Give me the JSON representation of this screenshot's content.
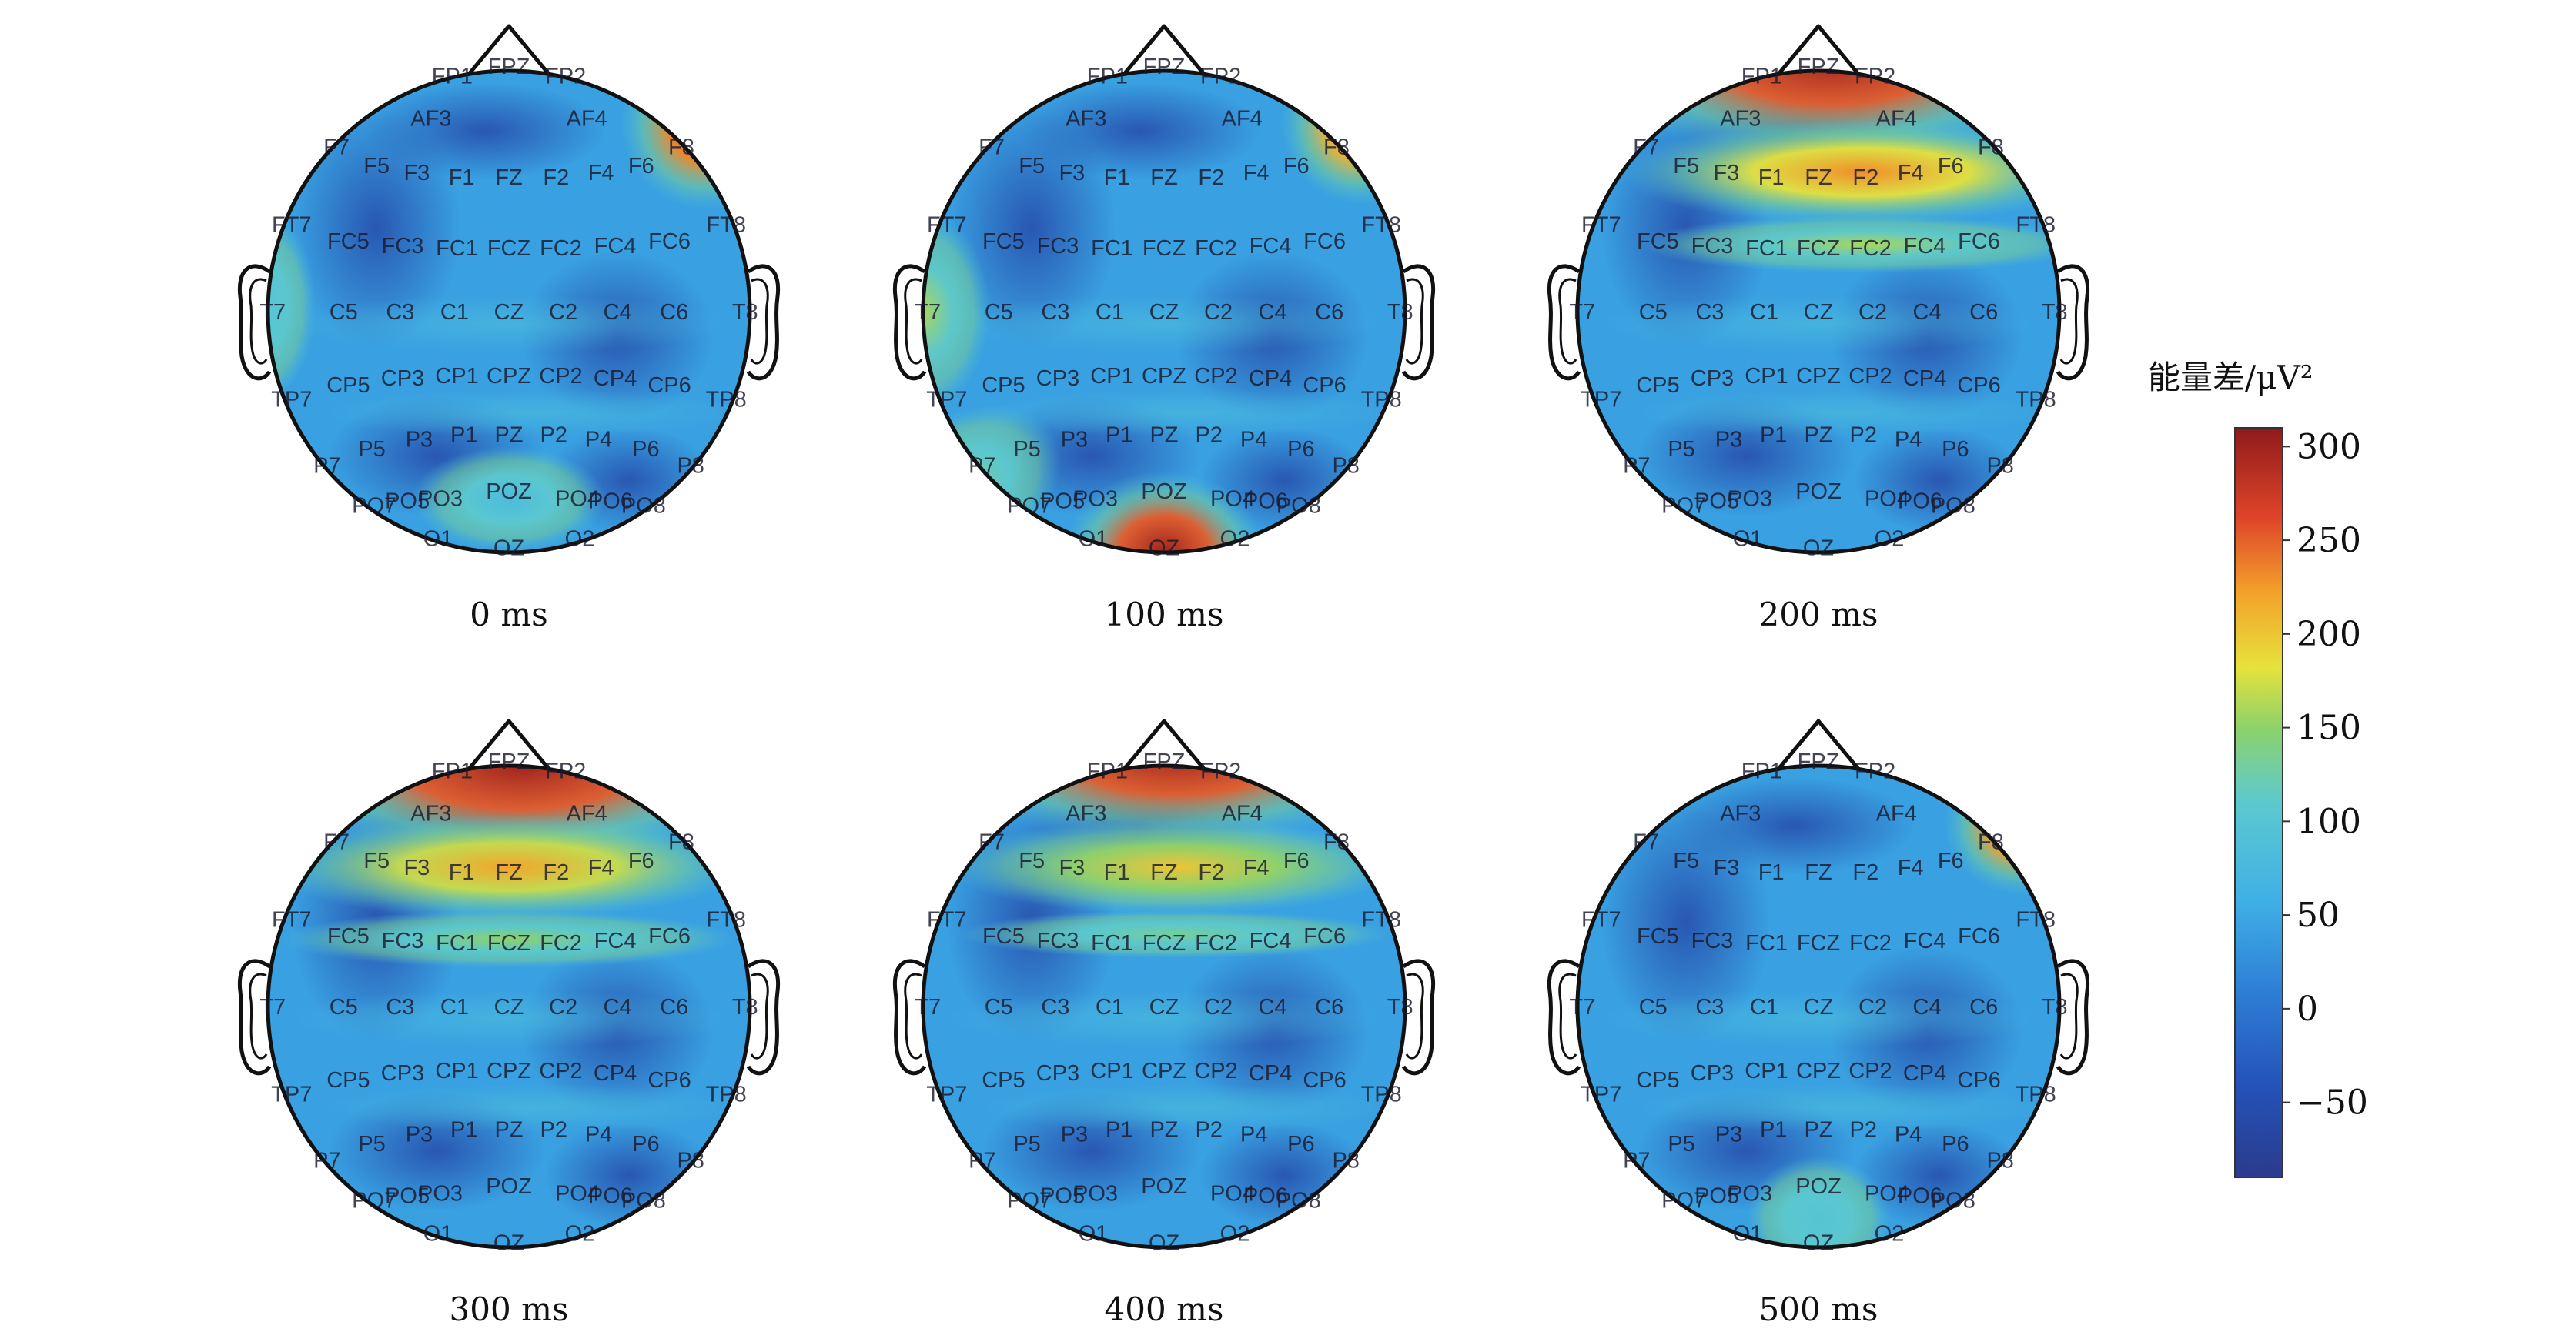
{
  "figure": {
    "colorbar": {
      "title": "能量差/μV²",
      "ticks": [
        "300",
        "250",
        "200",
        "150",
        "100",
        "50",
        "0",
        "−50"
      ],
      "tick_values": [
        300,
        250,
        200,
        150,
        100,
        50,
        0,
        -50
      ],
      "range": [
        -90,
        310
      ],
      "colormap": "jet"
    },
    "electrodes": [
      "FP1",
      "FPZ",
      "FP2",
      "AF3",
      "AF4",
      "F7",
      "F5",
      "F3",
      "F1",
      "FZ",
      "F2",
      "F4",
      "F6",
      "F8",
      "FT7",
      "FC5",
      "FC3",
      "FC1",
      "FCZ",
      "FC2",
      "FC4",
      "FC6",
      "FT8",
      "T7",
      "C5",
      "C3",
      "C1",
      "CZ",
      "C2",
      "C4",
      "C6",
      "T8",
      "TP7",
      "CP5",
      "CP3",
      "CP1",
      "CPZ",
      "CP2",
      "CP4",
      "CP6",
      "TP8",
      "P7",
      "P5",
      "P3",
      "P1",
      "PZ",
      "P2",
      "P4",
      "P6",
      "P8",
      "PO7",
      "PO5",
      "PO3",
      "POZ",
      "PO4",
      "PO6",
      "PO8",
      "O1",
      "OZ",
      "O2"
    ],
    "panels": [
      {
        "caption": "0 ms",
        "hotspots": [
          {
            "region": "right-frontal (F6/F8)",
            "level_uV2": 280
          },
          {
            "region": "left-temporal (T7)",
            "level_uV2": 100
          },
          {
            "region": "occipital (POZ)",
            "level_uV2": 80
          }
        ]
      },
      {
        "caption": "100 ms",
        "hotspots": [
          {
            "region": "right-frontal (F6/F8)",
            "level_uV2": 260
          },
          {
            "region": "occipital (POZ/OZ)",
            "level_uV2": 300
          },
          {
            "region": "left-temporal (T7)",
            "level_uV2": 160
          },
          {
            "region": "left-parietal (P7/P5)",
            "level_uV2": 130
          }
        ]
      },
      {
        "caption": "200 ms",
        "hotspots": [
          {
            "region": "frontal (FP1-FP2/AF3-AF4)",
            "level_uV2": 300
          },
          {
            "region": "fronto-central band (F3-F6)",
            "level_uV2": 230
          },
          {
            "region": "FC row",
            "level_uV2": 160
          }
        ]
      },
      {
        "caption": "300 ms",
        "hotspots": [
          {
            "region": "frontal (AF3-AF4/F8)",
            "level_uV2": 300
          },
          {
            "region": "F row",
            "level_uV2": 220
          },
          {
            "region": "FC row",
            "level_uV2": 150
          }
        ]
      },
      {
        "caption": "400 ms",
        "hotspots": [
          {
            "region": "frontal (FP1-FP2/AF3-AF4)",
            "level_uV2": 300
          },
          {
            "region": "F row",
            "level_uV2": 200
          },
          {
            "region": "FC row",
            "level_uV2": 130
          }
        ]
      },
      {
        "caption": "500 ms",
        "hotspots": [
          {
            "region": "right-frontal (F6/F8)",
            "level_uV2": 270
          },
          {
            "region": "occipital (POZ/OZ)",
            "level_uV2": 100
          }
        ]
      }
    ]
  }
}
